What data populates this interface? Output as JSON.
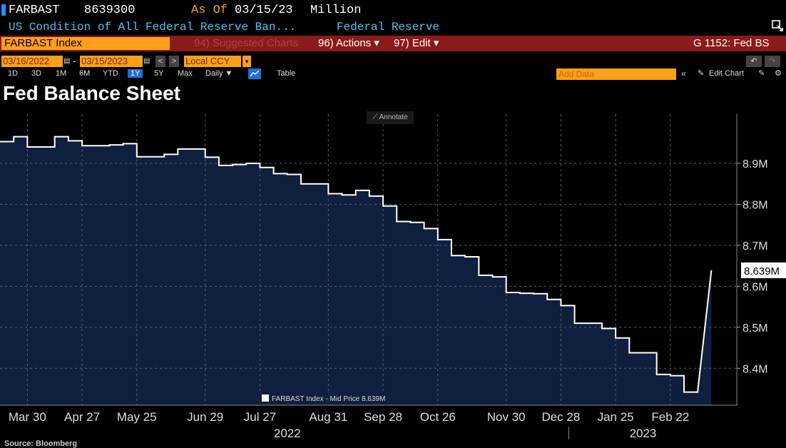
{
  "header": {
    "ticker": "FARBAST",
    "value": "8639300",
    "as_of_label": "As Of",
    "as_of_date": "03/15/23",
    "unit": "Million",
    "description": "US Condition of All Federal Reserve Ban...",
    "source_name": "Federal Reserve"
  },
  "toolbar": {
    "security": "FARBAST Index",
    "suggested": "94) Suggested Charts",
    "actions": "96) Actions ▾",
    "edit": "97) Edit ▾",
    "page_id": "G 1152: Fed BS"
  },
  "range": {
    "start": "03/16/2022",
    "end": "03/15/2023",
    "currency": "Local CCY"
  },
  "periods": [
    "1D",
    "3D",
    "1M",
    "6M",
    "YTD",
    "1Y",
    "5Y",
    "Max"
  ],
  "selected_period": "1Y",
  "frequency": "Daily ▼",
  "table_label": "Table",
  "add_data": "Add Data",
  "edit_chart": "Edit Chart",
  "annotate": "Annotate",
  "source": "Source: Bloomberg",
  "colors": {
    "accent_orange": "#ff9f1a",
    "bar_red": "#8b1a1a",
    "area_fill": "#0f1f3d",
    "cyan": "#4fc3f7"
  },
  "chart_data": {
    "type": "area",
    "title": "Fed Balance Sheet",
    "series": [
      {
        "name": "FARBAST Index - Mid Price 8.639M",
        "x": [
          "2022-03-16",
          "2022-03-23",
          "2022-03-30",
          "2022-04-06",
          "2022-04-13",
          "2022-04-20",
          "2022-04-27",
          "2022-05-04",
          "2022-05-11",
          "2022-05-18",
          "2022-05-25",
          "2022-06-01",
          "2022-06-08",
          "2022-06-15",
          "2022-06-22",
          "2022-06-29",
          "2022-07-06",
          "2022-07-13",
          "2022-07-20",
          "2022-07-27",
          "2022-08-03",
          "2022-08-10",
          "2022-08-17",
          "2022-08-24",
          "2022-08-31",
          "2022-09-07",
          "2022-09-14",
          "2022-09-21",
          "2022-09-28",
          "2022-10-05",
          "2022-10-12",
          "2022-10-19",
          "2022-10-26",
          "2022-11-02",
          "2022-11-09",
          "2022-11-16",
          "2022-11-23",
          "2022-11-30",
          "2022-12-07",
          "2022-12-14",
          "2022-12-21",
          "2022-12-28",
          "2023-01-04",
          "2023-01-11",
          "2023-01-18",
          "2023-01-25",
          "2023-02-01",
          "2023-02-08",
          "2023-02-15",
          "2023-02-22",
          "2023-03-01",
          "2023-03-08",
          "2023-03-15"
        ],
        "values": [
          8.953,
          8.965,
          8.94,
          8.94,
          8.965,
          8.955,
          8.943,
          8.943,
          8.945,
          8.948,
          8.916,
          8.916,
          8.922,
          8.935,
          8.935,
          8.915,
          8.895,
          8.897,
          8.9,
          8.89,
          8.875,
          8.873,
          8.85,
          8.85,
          8.826,
          8.823,
          8.834,
          8.82,
          8.796,
          8.758,
          8.756,
          8.741,
          8.714,
          8.675,
          8.672,
          8.627,
          8.623,
          8.585,
          8.583,
          8.582,
          8.568,
          8.553,
          8.51,
          8.51,
          8.497,
          8.474,
          8.438,
          8.438,
          8.385,
          8.382,
          8.342,
          8.344,
          8.639
        ]
      }
    ],
    "xticks": [
      "Mar 30",
      "Apr 27",
      "May 25",
      "Jun 29",
      "Jul 27",
      "Aug 31",
      "Sep 28",
      "Oct 26",
      "Nov 30",
      "Dec 28",
      "Jan 25",
      "Feb 22"
    ],
    "xtick_dates": [
      "2022-03-30",
      "2022-04-27",
      "2022-05-25",
      "2022-06-29",
      "2022-07-27",
      "2022-08-31",
      "2022-09-28",
      "2022-10-26",
      "2022-11-30",
      "2022-12-28",
      "2023-01-25",
      "2023-02-22"
    ],
    "years": [
      {
        "label": "2022",
        "date": "2022-08-10"
      },
      {
        "label": "2023",
        "date": "2023-02-08"
      }
    ],
    "year_divider_date": "2023-01-01",
    "yticks": [
      8.4,
      8.5,
      8.6,
      8.7,
      8.8,
      8.9
    ],
    "ytick_labels": [
      "8.4M",
      "8.5M",
      "8.6M",
      "8.7M",
      "8.8M",
      "8.9M"
    ],
    "ylim": [
      8.31,
      9.02
    ],
    "last_value_label": "8.639M",
    "grid": true
  }
}
